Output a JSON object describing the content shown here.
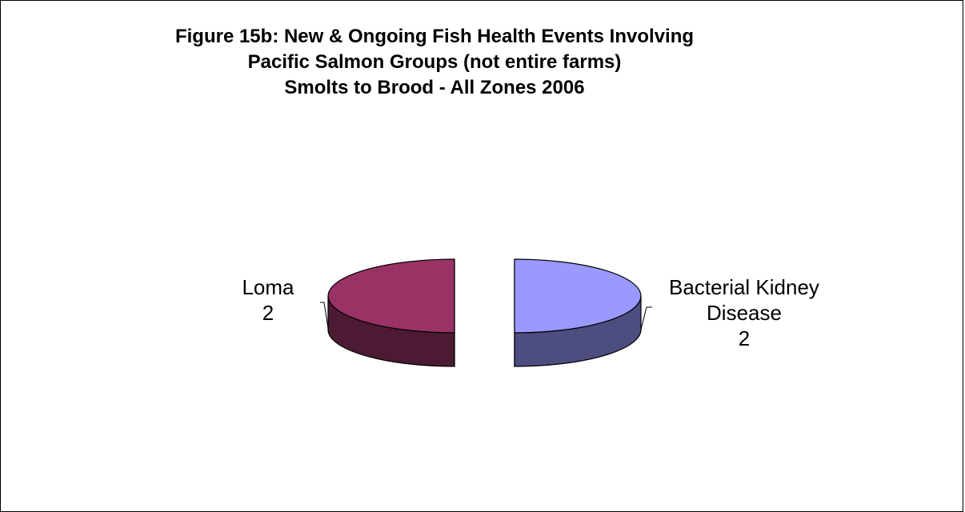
{
  "chart_data": {
    "type": "pie",
    "title_lines": [
      "Figure 15b: New & Ongoing Fish Health Events Involving",
      "Pacific Salmon Groups (not entire farms)",
      "Smolts to Brood - All Zones 2006"
    ],
    "slices": [
      {
        "label": "Loma",
        "value": 2,
        "color": "#993366"
      },
      {
        "label": "Bacterial Kidney Disease",
        "value": 2,
        "color": "#9999FF"
      }
    ],
    "label_lines": {
      "Loma": [
        "Loma",
        "2"
      ],
      "Bacterial Kidney Disease": [
        "Bacterial Kidney",
        "Disease",
        "2"
      ]
    },
    "style": "3d-exploded"
  }
}
